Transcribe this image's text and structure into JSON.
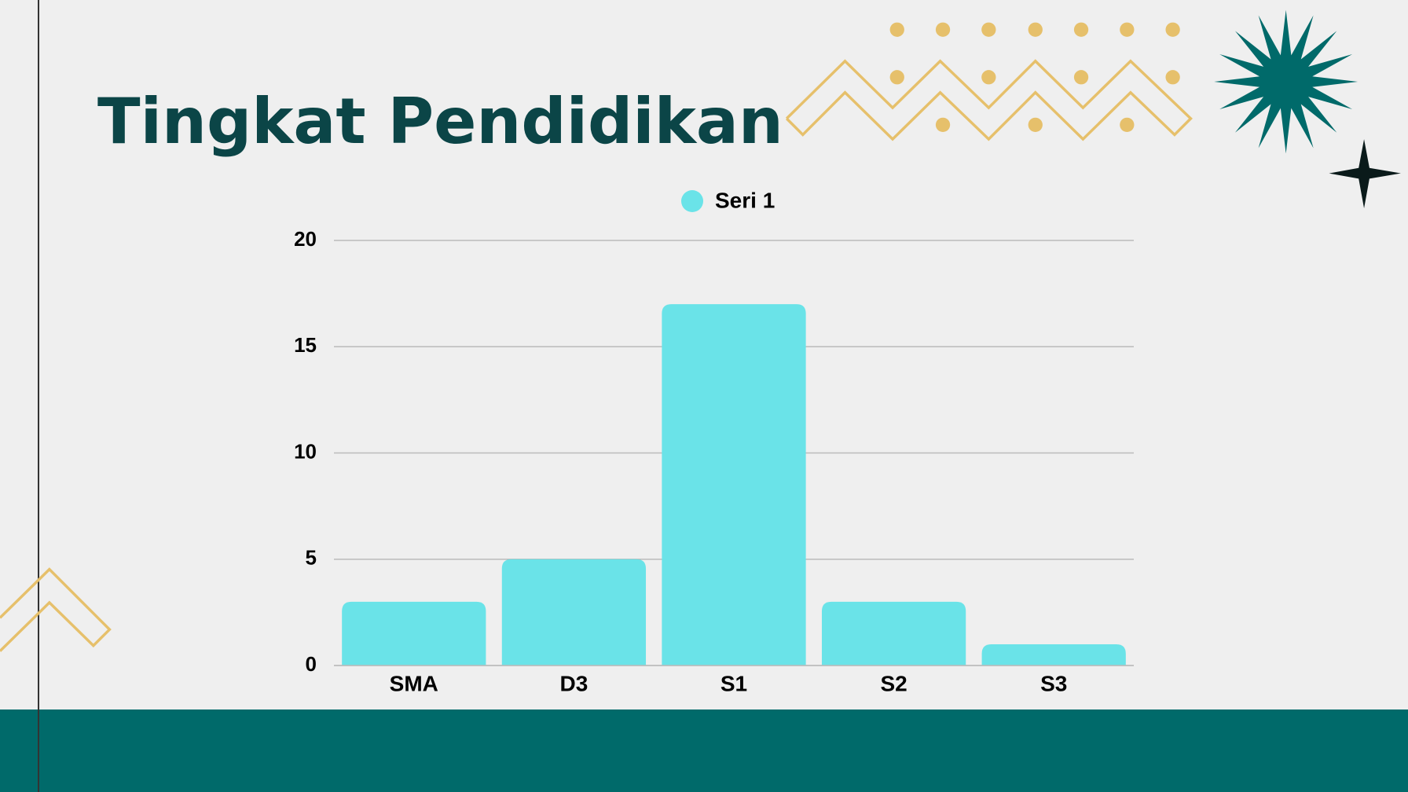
{
  "chart_data": {
    "type": "bar",
    "title": "Tingkat Pendidikan",
    "categories": [
      "SMA",
      "D3",
      "S1",
      "S2",
      "S3"
    ],
    "series": [
      {
        "name": "Seri 1",
        "color": "#6ae3e8",
        "values": [
          3,
          5,
          17,
          3,
          1
        ]
      }
    ],
    "ylim": [
      0,
      20
    ],
    "yticks": [
      0,
      5,
      10,
      15,
      20
    ],
    "grid": true
  }
}
